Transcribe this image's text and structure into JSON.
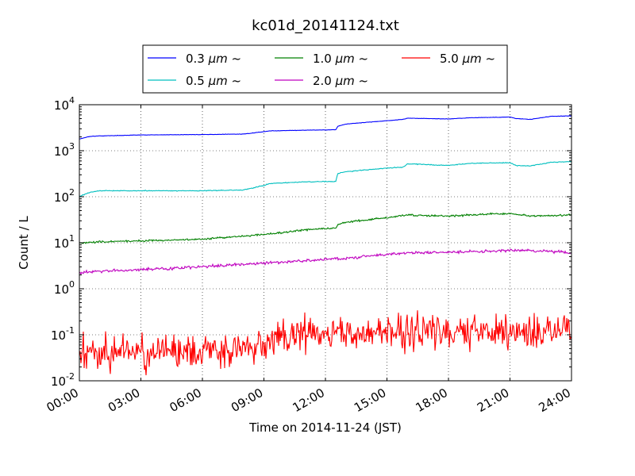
{
  "chart_data": {
    "type": "line",
    "title": "kc01d_20141124.txt",
    "xlabel": "Time on 2014-11-24 (JST)",
    "ylabel": "Count / L",
    "x_ticks": [
      "00:00",
      "03:00",
      "06:00",
      "09:00",
      "12:00",
      "15:00",
      "18:00",
      "21:00",
      "24:00"
    ],
    "xlim_hours": [
      0,
      24
    ],
    "yscale": "log",
    "ylim": [
      0.01,
      10000
    ],
    "y_ticks": [
      {
        "base": "10",
        "exp": "-2"
      },
      {
        "base": "10",
        "exp": "-1"
      },
      {
        "base": "10",
        "exp": "0"
      },
      {
        "base": "10",
        "exp": "1"
      },
      {
        "base": "10",
        "exp": "2"
      },
      {
        "base": "10",
        "exp": "3"
      },
      {
        "base": "10",
        "exp": "4"
      }
    ],
    "grid": true,
    "legend_position": "top-center",
    "legend_unit": "μm",
    "legend_suffix": "~",
    "series": [
      {
        "name": "0.3 μm ~",
        "size": "0.3",
        "color": "#0000ff",
        "noise_log10": 0.004,
        "hours": [
          0,
          0.5,
          1,
          3,
          6,
          8,
          9,
          9.3,
          11,
          12.5,
          12.6,
          13,
          15,
          15.8,
          16,
          18,
          19,
          20,
          21,
          21.3,
          22,
          23,
          24
        ],
        "values": [
          1800,
          2050,
          2100,
          2200,
          2250,
          2300,
          2600,
          2700,
          2800,
          2850,
          3400,
          3800,
          4500,
          4800,
          5100,
          4900,
          5200,
          5300,
          5400,
          5000,
          4800,
          5600,
          5700
        ]
      },
      {
        "name": "0.5 μm ~",
        "size": "0.5",
        "color": "#00bfbf",
        "noise_log10": 0.008,
        "hours": [
          0,
          0.5,
          1,
          3,
          6,
          8,
          9,
          9.3,
          11,
          12.5,
          12.6,
          13,
          15,
          15.8,
          16,
          18,
          19,
          20,
          21,
          21.3,
          22,
          23,
          24
        ],
        "values": [
          100,
          125,
          135,
          135,
          135,
          140,
          175,
          195,
          210,
          215,
          320,
          350,
          420,
          440,
          520,
          480,
          530,
          540,
          550,
          480,
          470,
          560,
          580
        ]
      },
      {
        "name": "1.0 μm ~",
        "size": "1.0",
        "color": "#008000",
        "noise_log10": 0.018,
        "hours": [
          0,
          1,
          3,
          6,
          8,
          9,
          11,
          12.5,
          12.6,
          13,
          15,
          16,
          18,
          20,
          21,
          22,
          24
        ],
        "values": [
          9.8,
          10.5,
          11,
          12,
          14,
          15,
          19,
          21,
          25,
          28,
          35,
          40,
          38,
          42,
          43,
          38,
          40
        ]
      },
      {
        "name": "2.0 μm ~",
        "size": "2.0",
        "color": "#bf00bf",
        "noise_log10": 0.03,
        "hours": [
          0,
          1,
          3,
          6,
          8,
          9,
          11,
          13,
          15,
          16,
          18,
          20,
          21,
          24
        ],
        "values": [
          2.2,
          2.4,
          2.6,
          3.0,
          3.4,
          3.6,
          4.1,
          4.6,
          5.6,
          6.0,
          6.2,
          6.5,
          6.9,
          6.2
        ]
      },
      {
        "name": "5.0 μm ~",
        "size": "5.0",
        "color": "#ff0000",
        "noise_log10": 0.35,
        "hours": [
          0,
          6,
          8,
          9,
          10,
          12,
          15,
          18,
          21,
          24
        ],
        "values": [
          0.04,
          0.04,
          0.05,
          0.06,
          0.1,
          0.11,
          0.11,
          0.12,
          0.12,
          0.12
        ]
      }
    ]
  }
}
